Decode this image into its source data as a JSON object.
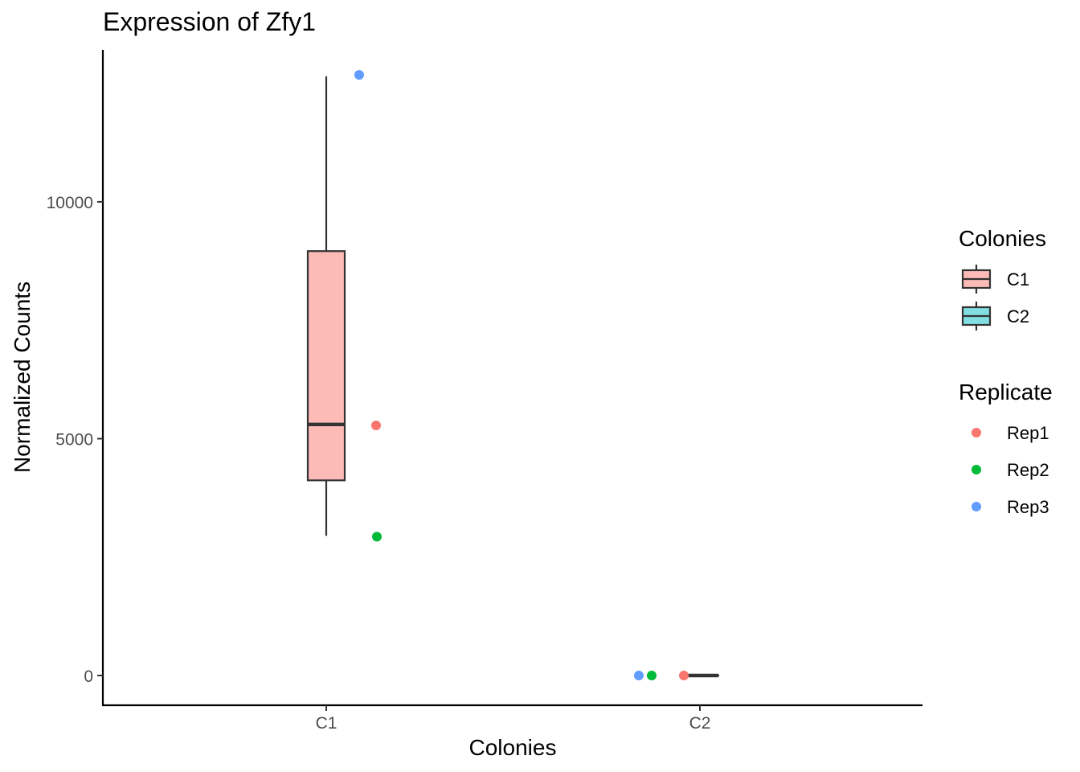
{
  "chart_data": {
    "type": "box",
    "title": "Expression of Zfy1",
    "xlabel": "Colonies",
    "ylabel": "Normalized Counts",
    "categories": [
      "C1",
      "C2"
    ],
    "ylim": [
      -600,
      13200
    ],
    "y_ticks": [
      0,
      5000,
      10000
    ],
    "y_tick_labels": [
      "0",
      "5000",
      "10000"
    ],
    "boxes": [
      {
        "category": "C1",
        "min": 2950,
        "q1": 4120,
        "median": 5300,
        "q3": 8960,
        "max": 12650,
        "fill": "#F8766D"
      },
      {
        "category": "C2",
        "min": 0,
        "q1": 0,
        "median": 0,
        "q3": 0,
        "max": 0,
        "fill": "#00BFC4"
      }
    ],
    "points": [
      {
        "category": "C1",
        "replicate": "Rep1",
        "value": 5280
      },
      {
        "category": "C1",
        "replicate": "Rep2",
        "value": 2930
      },
      {
        "category": "C1",
        "replicate": "Rep3",
        "value": 12680
      },
      {
        "category": "C2",
        "replicate": "Rep1",
        "value": 0
      },
      {
        "category": "C2",
        "replicate": "Rep2",
        "value": 0
      },
      {
        "category": "C2",
        "replicate": "Rep3",
        "value": 0
      }
    ],
    "legends": [
      {
        "title": "Colonies",
        "kind": "box",
        "items": [
          {
            "label": "C1",
            "color": "#F8766D"
          },
          {
            "label": "C2",
            "color": "#00BFC4"
          }
        ]
      },
      {
        "title": "Replicate",
        "kind": "point",
        "items": [
          {
            "label": "Rep1",
            "color": "#F8766D"
          },
          {
            "label": "Rep2",
            "color": "#00BA38"
          },
          {
            "label": "Rep3",
            "color": "#619CFF"
          }
        ]
      }
    ],
    "legend_position": "right",
    "grid": false
  }
}
